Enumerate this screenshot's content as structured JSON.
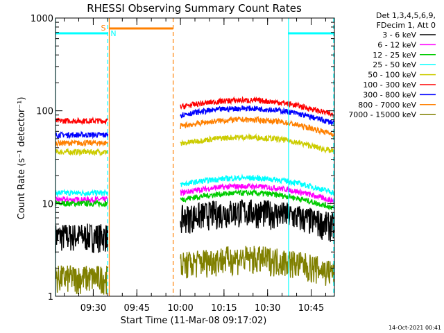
{
  "chart_data": {
    "type": "line",
    "title": "RHESSI Observing Summary Count Rates",
    "xlabel": "Start Time (11-Mar-08 09:17:02)",
    "ylabel": "Count Rate (s⁻¹ detector⁻¹)",
    "x_unit": "minutes",
    "x_range": [
      "09:17",
      "10:53"
    ],
    "x_ticks": [
      "09:30",
      "09:45",
      "10:00",
      "10:15",
      "10:30",
      "10:45"
    ],
    "y_scale": "log",
    "ylim": [
      1,
      1000
    ],
    "y_ticks": [
      "1",
      "10",
      "100",
      "1000"
    ],
    "legend": {
      "header_line1": "Det 1,3,4,5,6,9,",
      "header_line2": "FDecim 1, Att 0",
      "placement": "right"
    },
    "series": [
      {
        "name": "3 - 6 keV",
        "color": "#000000"
      },
      {
        "name": "6 - 12 keV",
        "color": "#ff00ff"
      },
      {
        "name": "12 - 25 keV",
        "color": "#00cc00"
      },
      {
        "name": "25 - 50 keV",
        "color": "#00ffff"
      },
      {
        "name": "50 - 100 keV",
        "color": "#cccc00"
      },
      {
        "name": "100 - 300 keV",
        "color": "#ff0000"
      },
      {
        "name": "300 - 800 keV",
        "color": "#0000ff"
      },
      {
        "name": "800 - 7000 keV",
        "color": "#ff8000"
      },
      {
        "name": "7000 - 15000 keV",
        "color": "#808000"
      }
    ],
    "segments": [
      {
        "start": "09:17",
        "end": "09:35",
        "levels": {
          "3 - 6 keV": 4.5,
          "6 - 12 keV": 11,
          "12 - 25 keV": 10,
          "25 - 50 keV": 13,
          "50 - 100 keV": 36,
          "100 - 300 keV": 78,
          "300 - 800 keV": 55,
          "800 - 7000 keV": 45,
          "7000 - 15000 keV": 1.6
        }
      },
      {
        "start": "10:00",
        "end": "10:53",
        "levels": {
          "3 - 6 keV": 7,
          "6 - 12 keV": 13,
          "12 - 25 keV": 11,
          "25 - 50 keV": 16,
          "50 - 100 keV": 44,
          "100 - 300 keV": 110,
          "300 - 800 keV": 90,
          "800 - 7000 keV": 68,
          "7000 - 15000 keV": 2.2
        }
      }
    ],
    "saa_flag": {
      "label": "S",
      "start": "09:35.5",
      "end": "09:57.5",
      "color": "#ff8000"
    },
    "night_flag": {
      "label": "N",
      "color": "#00ffff",
      "intervals": [
        [
          "09:17",
          "09:35"
        ],
        [
          "10:37",
          "10:53"
        ]
      ]
    },
    "footer_date": "14-Oct-2021 00:41"
  }
}
